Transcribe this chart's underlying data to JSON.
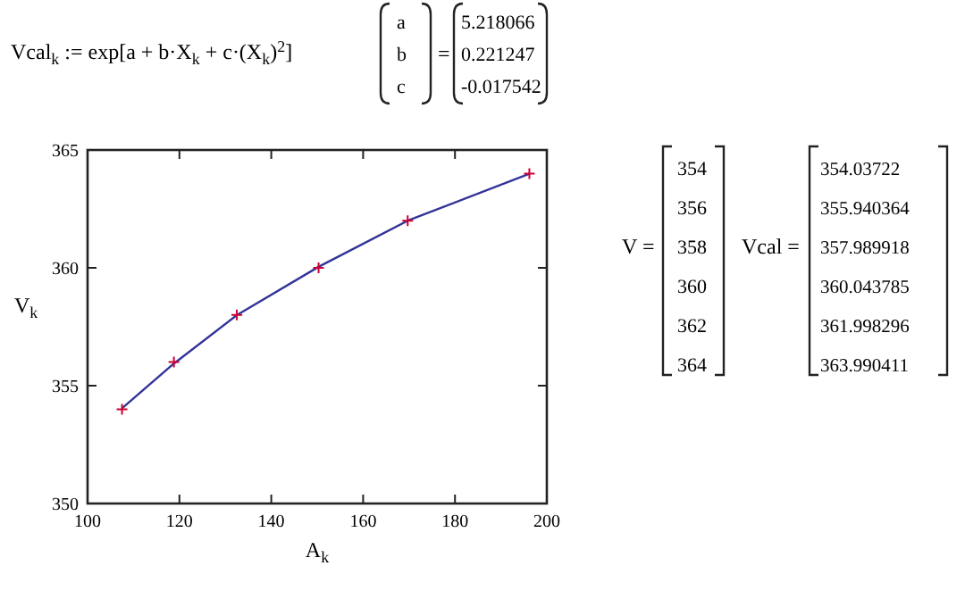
{
  "chart_data": {
    "type": "line",
    "xlabel": "A$_{k}$",
    "ylabel": "V$_{k}$",
    "xlim": [
      100,
      200
    ],
    "ylim": [
      350,
      365
    ],
    "xticks": [
      100,
      120,
      140,
      160,
      180,
      200
    ],
    "yticks": [
      350,
      355,
      360,
      365
    ],
    "grid": false,
    "series": [
      {
        "color": "#333399",
        "marker": "none",
        "x": [
          107.5,
          118.8,
          132.5,
          150.3,
          169.7,
          196.2
        ],
        "values": [
          354.03722,
          355.940364,
          357.989918,
          360.043785,
          361.998296,
          363.990411
        ]
      },
      {
        "type": "scatter",
        "color": "#cc0033",
        "marker": "cross",
        "x": [
          107.5,
          118.8,
          132.5,
          150.3,
          169.7,
          196.2
        ],
        "values": [
          354,
          356,
          358,
          360,
          362,
          364
        ]
      }
    ],
    "annotations": [
      "Vcal$_{k}$ := exp[a + b·X$_{k}$ + c·(X$_{k}$)$^{2}$]",
      "a",
      "b",
      "c",
      "5.218066",
      "0.221247",
      "-0.017542",
      "V =",
      "354",
      "356",
      "358",
      "360",
      "362",
      "364",
      "Vcal =",
      "354.03722",
      "355.940364",
      "357.989918",
      "360.043785",
      "361.998296",
      "363.990411",
      "="
    ]
  }
}
